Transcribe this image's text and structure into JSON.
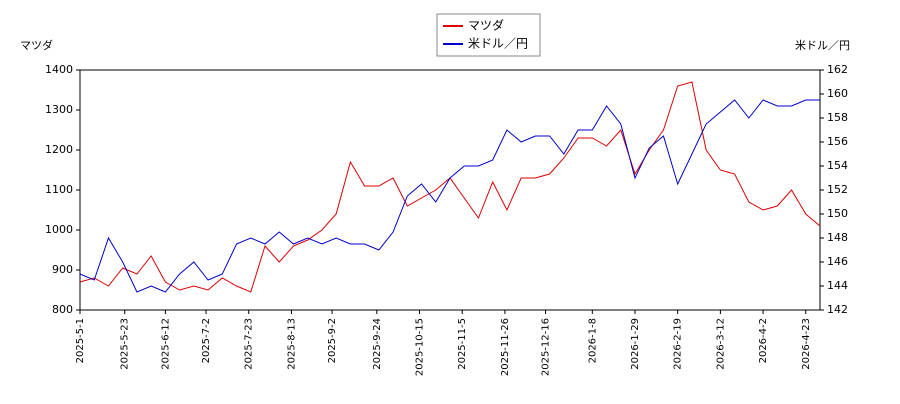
{
  "chart_data": {
    "type": "line",
    "y_label": "マツダ",
    "y2_label": "米ドル／円",
    "x": [
      "2025-5-1",
      "2025-5-8",
      "2025-5-15",
      "2025-5-22",
      "2025-5-29",
      "2025-6-5",
      "2025-6-12",
      "2025-6-19",
      "2025-6-26",
      "2025-7-3",
      "2025-7-10",
      "2025-7-17",
      "2025-7-24",
      "2025-7-31",
      "2025-8-7",
      "2025-8-14",
      "2025-8-21",
      "2025-8-28",
      "2025-9-4",
      "2025-9-11",
      "2025-9-18",
      "2025-9-25",
      "2025-10-2",
      "2025-10-9",
      "2025-10-16",
      "2025-10-23",
      "2025-10-30",
      "2025-11-6",
      "2025-11-13",
      "2025-11-20",
      "2025-11-27",
      "2025-12-4",
      "2025-12-11",
      "2025-12-18",
      "2025-12-25",
      "2026-1-1",
      "2026-1-8",
      "2026-1-15",
      "2026-1-22",
      "2026-1-29",
      "2026-2-5",
      "2026-2-12",
      "2026-2-19",
      "2026-2-26",
      "2026-3-5",
      "2026-3-12",
      "2026-3-19",
      "2026-3-26",
      "2026-4-2",
      "2026-4-9",
      "2026-4-16",
      "2026-4-23",
      "2026-4-30"
    ],
    "series": [
      {
        "name": "マツダ",
        "color": "#dd0000",
        "axis": "y",
        "values": [
          870,
          880,
          860,
          905,
          890,
          935,
          870,
          850,
          860,
          850,
          880,
          860,
          845,
          960,
          920,
          960,
          975,
          1000,
          1040,
          1170,
          1110,
          1110,
          1130,
          1060,
          1080,
          1100,
          1130,
          1080,
          1030,
          1120,
          1050,
          1130,
          1130,
          1140,
          1180,
          1230,
          1230,
          1210,
          1250,
          1140,
          1200,
          1250,
          1360,
          1370,
          1200,
          1150,
          1140,
          1070,
          1050,
          1060,
          1100,
          1040,
          1010
        ]
      },
      {
        "name": "米ドル／円",
        "color": "#0000cc",
        "axis": "y2",
        "values": [
          145,
          144.5,
          148,
          146,
          143.5,
          144,
          143.5,
          145,
          146,
          144.5,
          145,
          147.5,
          148,
          147.5,
          148.5,
          147.5,
          148,
          147.5,
          148,
          147.5,
          147.5,
          147,
          148.5,
          151.5,
          152.5,
          151,
          153,
          154,
          154,
          154.5,
          157,
          156,
          156.5,
          156.5,
          155,
          157,
          157,
          159,
          157.5,
          153,
          155.5,
          156.5,
          152.5,
          155,
          157.5,
          158.5,
          159.5,
          158,
          159.5,
          159,
          159,
          159.5,
          159.5
        ]
      }
    ],
    "xlim": [
      "2025-5-1",
      "2026-4-30"
    ],
    "xticks": [
      "2025-5-1",
      "2025-5-23",
      "2025-6-12",
      "2025-7-2",
      "2025-7-23",
      "2025-8-13",
      "2025-9-2",
      "2025-9-24",
      "2025-10-15",
      "2025-11-5",
      "2025-11-26",
      "2025-12-16",
      "2026-1-8",
      "2026-1-29",
      "2026-2-19",
      "2026-3-12",
      "2026-4-2",
      "2026-4-23"
    ],
    "ylim": [
      800,
      1400
    ],
    "yticks": [
      800,
      900,
      1000,
      1100,
      1200,
      1300,
      1400
    ],
    "y2lim": [
      142,
      162
    ],
    "y2ticks": [
      142,
      144,
      146,
      148,
      150,
      152,
      154,
      156,
      158,
      160,
      162
    ],
    "legend": "top"
  }
}
